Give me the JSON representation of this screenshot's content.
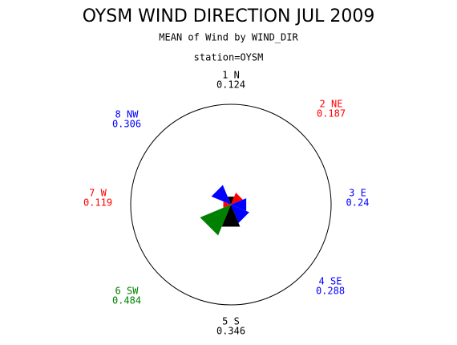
{
  "chart_data": {
    "type": "wind-rose",
    "title": "OYSM WIND DIRECTION JUL 2009",
    "subtitle": "MEAN of Wind by WIND_DIR",
    "group_label": "station=OYSM",
    "categories": [
      "1 N",
      "2 NE",
      "3 E",
      "4 SE",
      "5 S",
      "6 SW",
      "7 W",
      "8 NW"
    ],
    "values": [
      0.124,
      0.187,
      0.24,
      0.288,
      0.346,
      0.484,
      0.119,
      0.306
    ],
    "colors": [
      "#000000",
      "#ff0000",
      "#0000ff",
      "#0000ff",
      "#000000",
      "#008000",
      "#ff0000",
      "#0000ff"
    ],
    "rlim": [
      0,
      1.45
    ]
  }
}
